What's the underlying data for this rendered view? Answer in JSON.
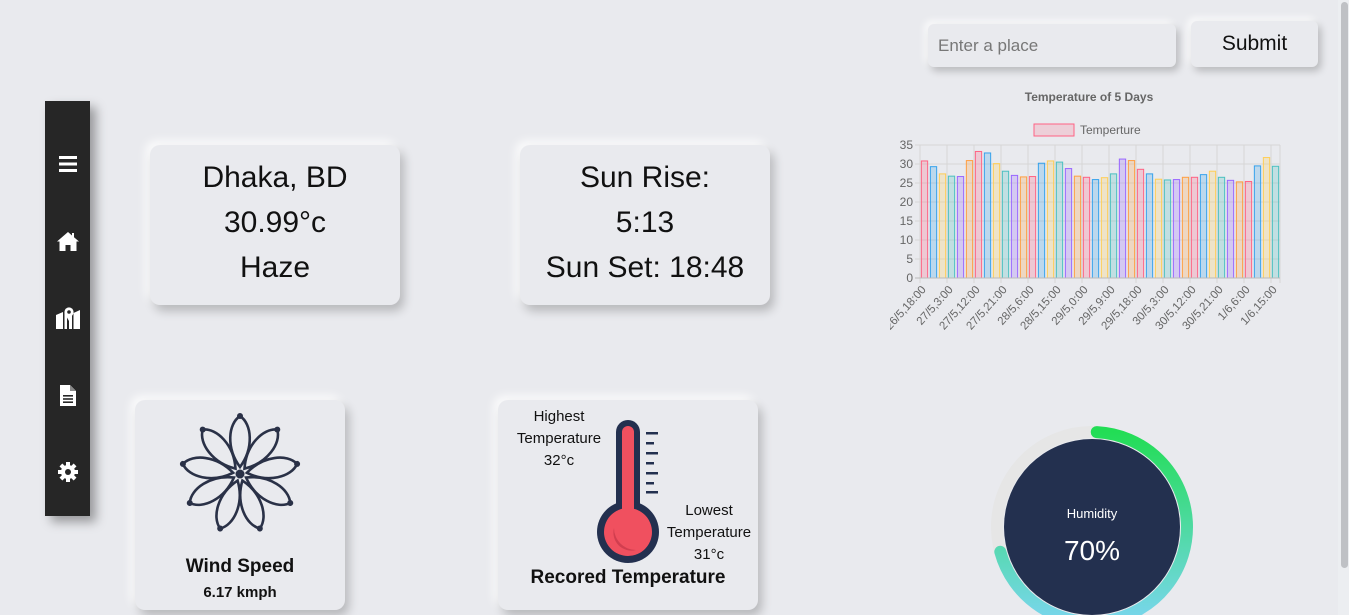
{
  "sidebar": {
    "items": [
      {
        "icon": "hamburger-menu-icon"
      },
      {
        "icon": "home-icon"
      },
      {
        "icon": "map-icon"
      },
      {
        "icon": "document-icon"
      },
      {
        "icon": "gear-icon"
      }
    ],
    "background": "#262626"
  },
  "search": {
    "placeholder": "Enter a place",
    "value": "",
    "submit_label": "Submit"
  },
  "weather": {
    "city": "Dhaka, BD",
    "temperature": "30.99°c",
    "condition": "Haze"
  },
  "sun": {
    "rise_label": "Sun Rise:",
    "rise_time": "5:13",
    "set_text": "Sun Set: 18:48"
  },
  "wind": {
    "title": "Wind Speed",
    "value": "6.17 kmph",
    "icon": "windmill-flower-icon"
  },
  "recorded": {
    "title": "Recored Temperature",
    "high_label_1": "Highest",
    "high_label_2": "Temperature",
    "high_value": "32°c",
    "low_label_1": "Lowest",
    "low_label_2": "Temperature",
    "low_value": "31°c",
    "icon": "thermometer-icon"
  },
  "humidity": {
    "label": "Humidity",
    "value_text": "70%",
    "percent": 70,
    "colors": {
      "inner": "#23304f",
      "arc_start": "#22dd55",
      "arc_end": "#7ad6ee",
      "track": "#e6e6e6"
    }
  },
  "chart_data": {
    "type": "bar",
    "title": "Temperature of 5 Days",
    "legend": "Temperture",
    "legend_position": "top",
    "ylim": [
      0,
      35
    ],
    "yticks": [
      0,
      5,
      10,
      15,
      20,
      25,
      30,
      35
    ],
    "grid": true,
    "tick_labels": [
      "26/5,18:00",
      "27/5,3:00",
      "27/5,12:00",
      "27/5,21:00",
      "28/5,6:00",
      "28/5,15:00",
      "29/5,0:00",
      "29/5,9:00",
      "29/5,18:00",
      "30/5,3:00",
      "30/5,12:00",
      "30/5,21:00",
      "1/6,6:00",
      "1/6,15:00"
    ],
    "values": [
      30.8,
      29.3,
      27.4,
      26.8,
      26.7,
      30.9,
      33.3,
      32.9,
      30.1,
      28.1,
      27.0,
      26.6,
      26.7,
      30.2,
      30.8,
      30.5,
      28.8,
      26.8,
      26.5,
      25.9,
      26.4,
      27.4,
      31.3,
      30.9,
      28.6,
      27.4,
      26.0,
      25.8,
      25.9,
      26.5,
      26.5,
      27.2,
      28.1,
      26.5,
      25.7,
      25.3,
      25.4,
      29.5,
      31.7,
      29.4
    ],
    "bar_colors": [
      "#ff6384",
      "#36a2eb",
      "#ffce56",
      "#4bc0c0",
      "#9966ff",
      "#ff9f40"
    ]
  }
}
